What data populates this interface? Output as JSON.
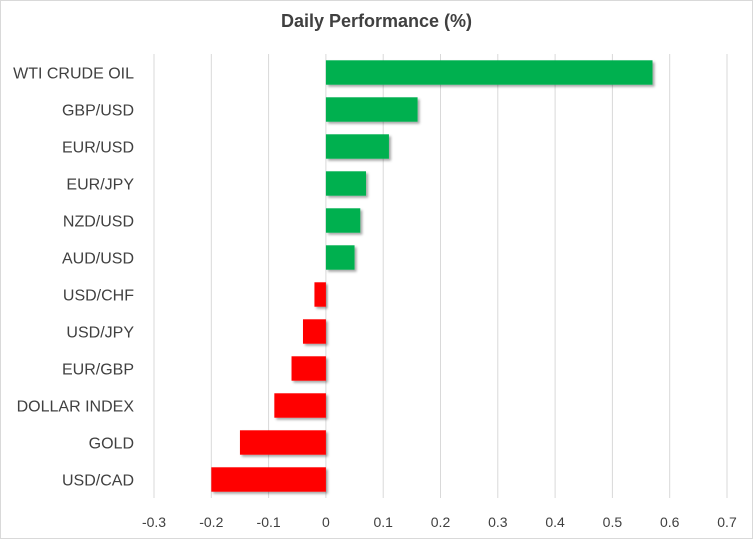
{
  "chart_data": {
    "type": "bar",
    "orientation": "horizontal",
    "title": "Daily Performance (%)",
    "xlabel": "",
    "ylabel": "",
    "categories": [
      "WTI CRUDE OIL",
      "GBP/USD",
      "EUR/USD",
      "EUR/JPY",
      "NZD/USD",
      "AUD/USD",
      "USD/CHF",
      "USD/JPY",
      "EUR/GBP",
      "DOLLAR INDEX",
      "GOLD",
      "USD/CAD"
    ],
    "values": [
      0.57,
      0.16,
      0.11,
      0.07,
      0.06,
      0.05,
      -0.02,
      -0.04,
      -0.06,
      -0.09,
      -0.15,
      -0.2
    ],
    "xlim": [
      -0.3,
      0.7
    ],
    "xticks": [
      "-0.3",
      "-0.2",
      "-0.1",
      "0",
      "0.1",
      "0.2",
      "0.3",
      "0.4",
      "0.5",
      "0.6",
      "0.7"
    ],
    "grid": "vertical",
    "legend": "none",
    "colors": {
      "positive": "#00b050",
      "negative": "#ff0000",
      "grid": "#d9d9d9",
      "text": "#404040"
    }
  }
}
